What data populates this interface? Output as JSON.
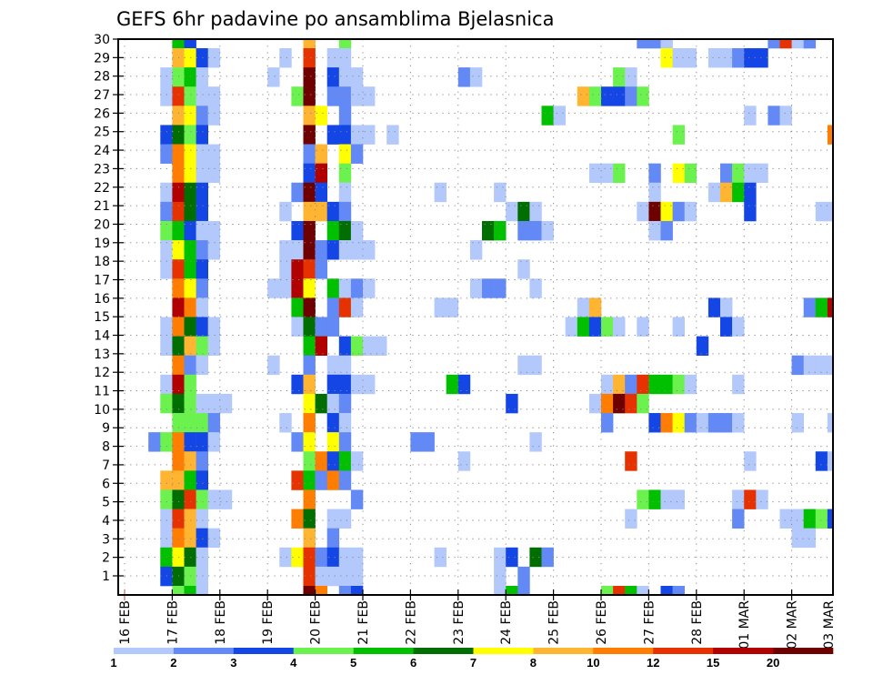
{
  "chart_data": {
    "type": "heatmap",
    "title": "GEFS 6hr padavine po ansamblima Bjelasnica",
    "xlabel": "",
    "ylabel": "",
    "x_tick_labels": [
      "16 FEB",
      "17 FEB",
      "18 FEB",
      "19 FEB",
      "20 FEB",
      "21 FEB",
      "22 FEB",
      "23 FEB",
      "24 FEB",
      "25 FEB",
      "26 FEB",
      "27 FEB",
      "28 FEB",
      "01 MAR",
      "02 MAR",
      "03 MAR"
    ],
    "y_tick_labels": [
      "1",
      "2",
      "3",
      "4",
      "5",
      "6",
      "7",
      "8",
      "9",
      "10",
      "11",
      "12",
      "13",
      "14",
      "15",
      "16",
      "17",
      "18",
      "19",
      "20",
      "21",
      "22",
      "23",
      "24",
      "25",
      "26",
      "27",
      "28",
      "29",
      "30"
    ],
    "time_step": "6hr",
    "grid": true,
    "colorbar": {
      "placement": "bottom",
      "levels": [
        "1",
        "2",
        "3",
        "4",
        "5",
        "6",
        "7",
        "8",
        "10",
        "12",
        "15",
        "20"
      ],
      "colors": [
        "#b3c8fb",
        "#6289f5",
        "#1446e6",
        "#6cf24f",
        "#00c000",
        "#006e00",
        "#ffff00",
        "#ffb432",
        "#ff7d00",
        "#e63200",
        "#b00000",
        "#6e0000"
      ]
    },
    "level_codes": "a=1-2, b=2-3, c=3-4, d=4-5, e=5-6, f=6-7, g=7-8, h=8-10, i=10-12, j=12-15, k=15-20, l=>20",
    "rows_top_to_bottom": [
      "4e 5c 15h 18d 43b 44b 45a 54b 55j 56a 57b",
      "4h 5g 6c 7a 13a 15j 17a 18a 45g 46a 47a 49a 50a 51b 52c 53c",
      "3a 4d 5e 6a 12a 15l 17c 18a 19a 28b 29a 41d 42a",
      "3a 4j 5d 6a 7a 14d 15l 17b 18b 19a 20a 38h 39d 40c 41c 42b 43d",
      "4h 5g 6b 7a 15h 16g 18b 35e 36a 52a 54b 55a",
      "3c 4f 5d 6c 15l 17c 18c 19a 20a 22a 46d 59i",
      "3b 4i 5g 6a 7a 15b 16h 18g 19b",
      "4i 5g 6a 7a 15c 16k 18d 39a 40a 41d 44b 46g 47d 50b 51d 52a 53a",
      "3a 4k 5f 6c 14b 15l 16c 18a 26a 31a 44a 49a 50h 51e 52c",
      "3b 4j 5f 6c 13a 15h 16h 17c 18b 32a 33f 34a 43a 44l 45g 46b 47a 52c 58a 59a",
      "3d 4e 5c 6a 7a 14c 15l 17e 18f 19a 30f 31e 33b 34b 35a 44a 45b",
      "3a 4g 5e 6b 7a 13a 14a 15l 16b 17c 18a 19a 20a 29a",
      "3a 4j 5e 6c 13a 14k 15j 16b 33a",
      "4i 5g 6b 12a 13a 14k 15g 17e 18a 19b 20a 29a 30b 31b 34a",
      "4k 5i 6a 14e 15l 17b 18j 19a 26a 27a 38a 39h 49c 50a 57b 58e 59k",
      "3a 4i 5f 6c 7a 14a 15f 16b 17b 37a 38e 39c 40d 41a 43a 46a 50c 51a",
      "3a 4f 5h 6d 7a 15e 16k 18c 19d 20a 21a 48c",
      "4i 5b 6a 12a 15b 17a 18a 33a 34a 56b 57a 58a 59a",
      "3a 4k 5d 14c 15h 17c 18c 19a 20a 27e 28c 40a 41h 42b 43j 44e 45e 46d 47a 51a",
      "3d 4f 5d 6a 7a 8a 15g 16f 17a 18b 32c 39a 40i 41l 42j 43d",
      "4d 5d 6d 7b 13a 15i 17c 18a 40b 44c 45i 46g 47b 48a 49b 50b 51a 56a 59a",
      "2b 3d 4i 5c 6c 7a 14b 15g 17g 18b 24b 25b 34a",
      "4i 5h 6b 15d 16i 17c 18e 19a 28a 42j 52a 58c 59a",
      "3h 4h 5e 6c 14j 15e 16b 17i 18b",
      "3d 4f 5j 6d 7a 8a 15i 19b 43d 44e 45a 46a 51a 52j 53a",
      "3a 4j 5h 6a 14i 15f 17a 18a 42a 51b 55a 56a 57e 58d 59c",
      "3a 4i 5h 6c 7a 15h 17b 56a 57a",
      "3e 4g 5f 6a 13a 14g 15j 16b 17c 18a 19a 26a 31a 32c 34f 35b",
      "3c 4f 5d 6a 15j 16a 17a 18a 19a 31a 33b",
      "4d 5e 6a 15l 16i 18b 19c 31a 32e 33b 40d 41j 42e 43a 45c 46b"
    ]
  }
}
